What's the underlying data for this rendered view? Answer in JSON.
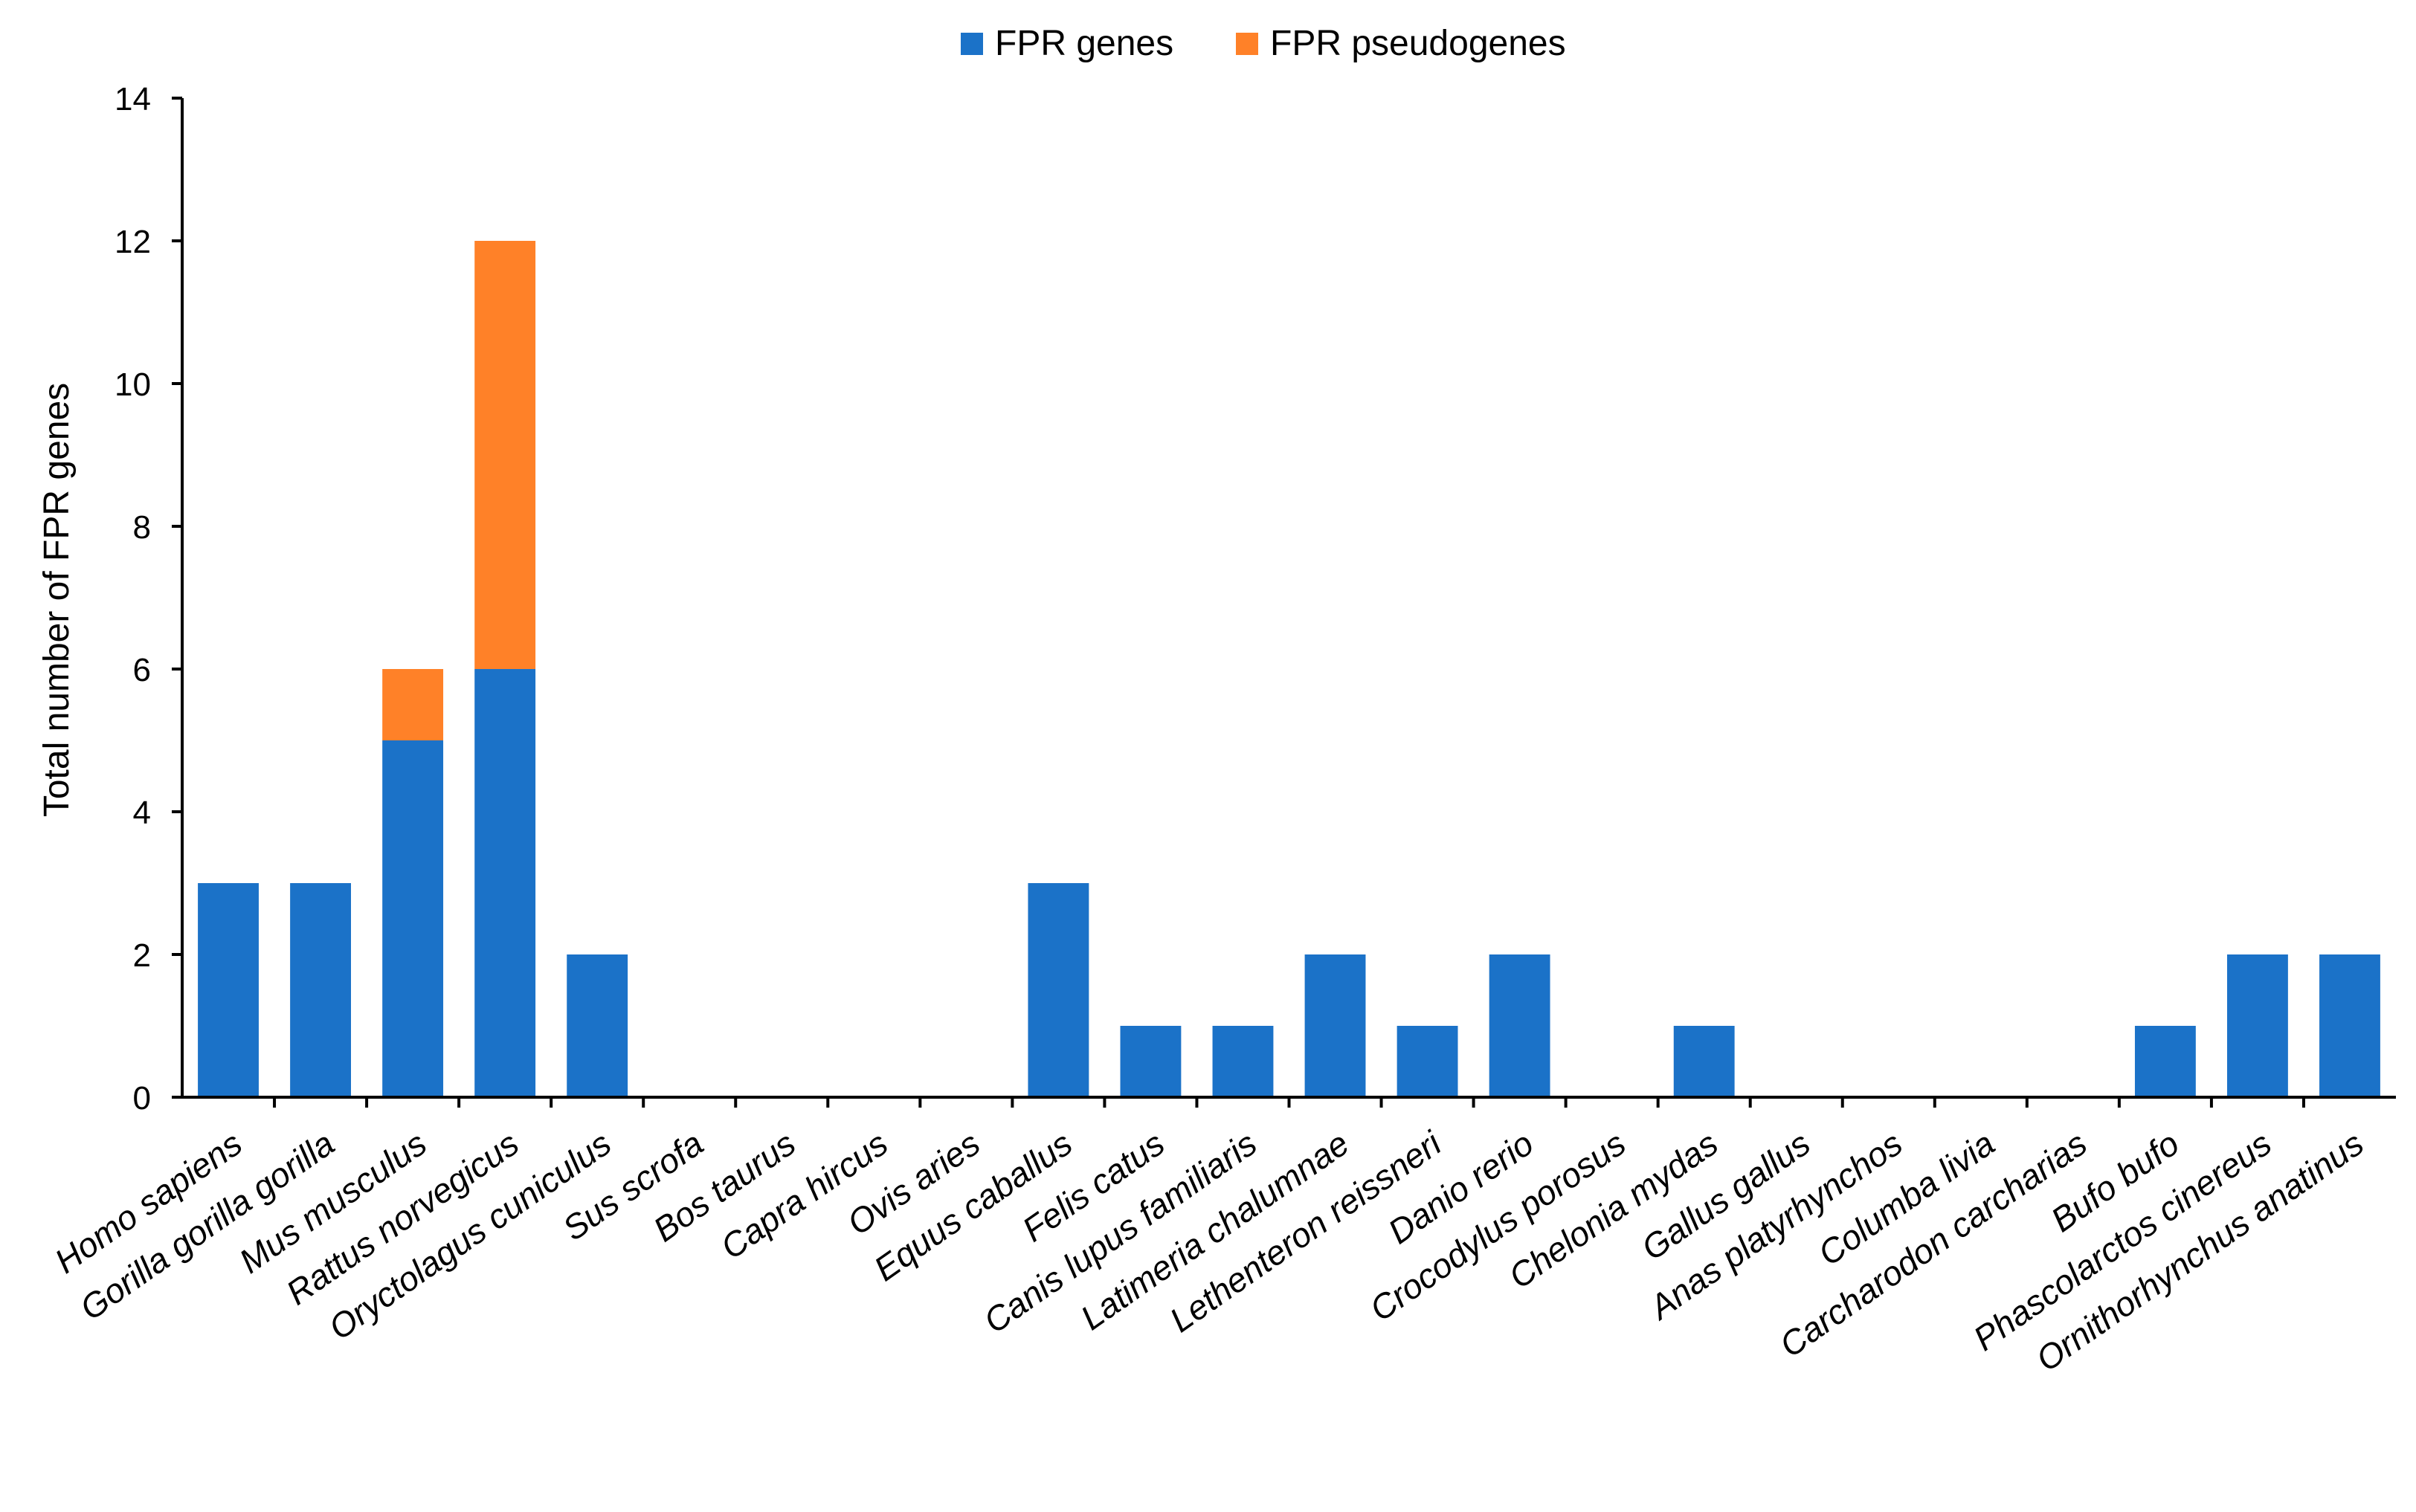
{
  "chart_data": {
    "type": "bar",
    "stacked": true,
    "title": "",
    "xlabel": "",
    "ylabel": "Total number of FPR genes",
    "ylim": [
      0,
      14
    ],
    "yticks": [
      0,
      2,
      4,
      6,
      8,
      10,
      12,
      14
    ],
    "grid": false,
    "legend_position": "top-center",
    "categories": [
      "Homo sapiens",
      "Gorilla gorilla gorilla",
      "Mus musculus",
      "Rattus norvegicus",
      "Oryctolagus cuniculus",
      "Sus scrofa",
      "Bos taurus",
      "Capra hircus",
      "Ovis aries",
      "Equus caballus",
      "Felis catus",
      "Canis lupus familiaris",
      "Latimeria chalumnae",
      "Lethenteron reissneri",
      "Danio rerio",
      "Crocodylus porosus",
      "Chelonia mydas",
      "Gallus gallus",
      "Anas platyrhynchos",
      "Columba livia",
      "Carcharodon carcharias",
      "Bufo bufo",
      "Phascolarctos cinereus",
      "Ornithorhynchus anatinus"
    ],
    "series": [
      {
        "name": "FPR genes",
        "color": "#1B72C8",
        "values": [
          3,
          3,
          5,
          6,
          2,
          0,
          0,
          0,
          0,
          3,
          1,
          1,
          2,
          1,
          2,
          0,
          1,
          0,
          0,
          0,
          0,
          1,
          2,
          2
        ]
      },
      {
        "name": "FPR pseudogenes",
        "color": "#FF8128",
        "values": [
          0,
          0,
          1,
          6,
          0,
          0,
          0,
          0,
          0,
          0,
          0,
          0,
          0,
          0,
          0,
          0,
          0,
          0,
          0,
          0,
          0,
          0,
          0,
          0
        ]
      }
    ]
  }
}
